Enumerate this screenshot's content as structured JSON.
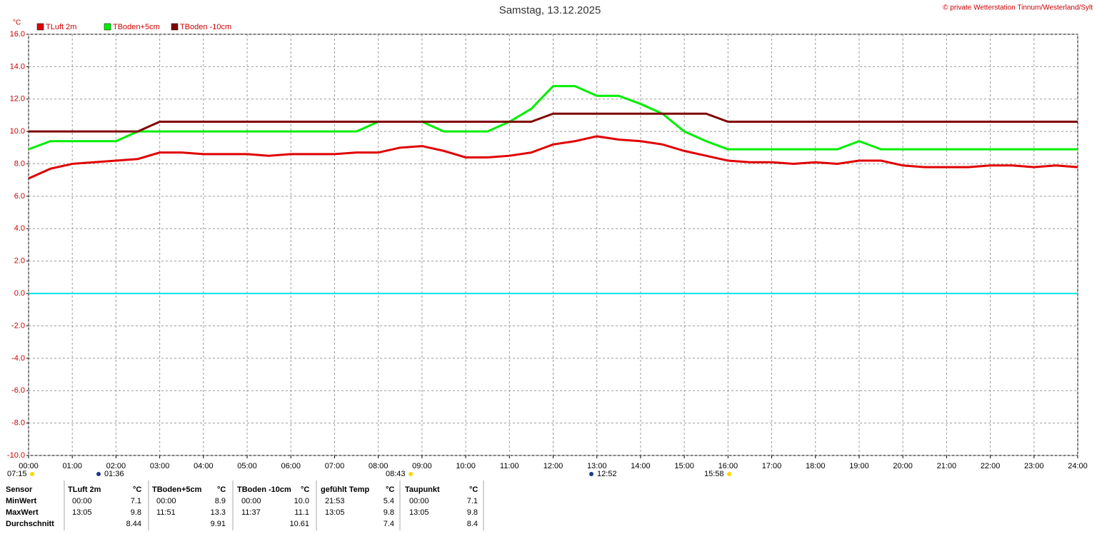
{
  "chart_data": {
    "type": "line",
    "title": "Samstag, 13.12.2025",
    "copyright": "© private Wetterstation Tinnum/Westerland/Sylt",
    "y_unit": "°C",
    "x": [
      0,
      0.5,
      1,
      1.5,
      2,
      2.5,
      3,
      3.5,
      4,
      4.5,
      5,
      5.5,
      6,
      6.5,
      7,
      7.5,
      8,
      8.5,
      9,
      9.5,
      10,
      10.5,
      11,
      11.5,
      12,
      12.5,
      13,
      13.5,
      14,
      14.5,
      15,
      15.5,
      16,
      16.5,
      17,
      17.5,
      18,
      18.5,
      19,
      19.5,
      20,
      20.5,
      21,
      21.5,
      22,
      22.5,
      23,
      23.5,
      24
    ],
    "series": [
      {
        "name": "TLuft 2m",
        "color": "#e00000",
        "values": [
          7.1,
          7.7,
          8.0,
          8.1,
          8.2,
          8.3,
          8.7,
          8.7,
          8.6,
          8.6,
          8.6,
          8.5,
          8.6,
          8.6,
          8.6,
          8.7,
          8.7,
          9.0,
          9.1,
          8.8,
          8.4,
          8.4,
          8.5,
          8.7,
          9.2,
          9.4,
          9.7,
          9.5,
          9.4,
          9.2,
          8.8,
          8.5,
          8.2,
          8.1,
          8.1,
          8.0,
          8.1,
          8.0,
          8.2,
          8.2,
          7.9,
          7.8,
          7.8,
          7.8,
          7.9,
          7.9,
          7.8,
          7.9,
          7.8
        ]
      },
      {
        "name": "TBoden+5cm",
        "color": "#00ee00",
        "values": [
          8.9,
          9.4,
          9.4,
          9.4,
          9.4,
          10.0,
          10.0,
          10.0,
          10.0,
          10.0,
          10.0,
          10.0,
          10.0,
          10.0,
          10.0,
          10.0,
          10.6,
          10.6,
          10.6,
          10.0,
          10.0,
          10.0,
          10.6,
          11.4,
          12.8,
          12.8,
          12.2,
          12.2,
          11.7,
          11.1,
          10.0,
          9.4,
          8.9,
          8.9,
          8.9,
          8.9,
          8.9,
          8.9,
          9.4,
          8.9,
          8.9,
          8.9,
          8.9,
          8.9,
          8.9,
          8.9,
          8.9,
          8.9,
          8.9
        ]
      },
      {
        "name": "TBoden -10cm",
        "color": "#800000",
        "values": [
          10.0,
          10.0,
          10.0,
          10.0,
          10.0,
          10.0,
          10.6,
          10.6,
          10.6,
          10.6,
          10.6,
          10.6,
          10.6,
          10.6,
          10.6,
          10.6,
          10.6,
          10.6,
          10.6,
          10.6,
          10.6,
          10.6,
          10.6,
          10.6,
          11.1,
          11.1,
          11.1,
          11.1,
          11.1,
          11.1,
          11.1,
          11.1,
          10.6,
          10.6,
          10.6,
          10.6,
          10.6,
          10.6,
          10.6,
          10.6,
          10.6,
          10.6,
          10.6,
          10.6,
          10.6,
          10.6,
          10.6,
          10.6,
          10.6
        ]
      }
    ],
    "xlim": [
      0,
      24
    ],
    "xticks": [
      {
        "value": 0,
        "label": "00:00"
      },
      {
        "value": 1,
        "label": "01:00"
      },
      {
        "value": 2,
        "label": "02:00"
      },
      {
        "value": 3,
        "label": "03:00"
      },
      {
        "value": 4,
        "label": "04:00"
      },
      {
        "value": 5,
        "label": "05:00"
      },
      {
        "value": 6,
        "label": "06:00"
      },
      {
        "value": 7,
        "label": "07:00"
      },
      {
        "value": 8,
        "label": "08:00"
      },
      {
        "value": 9,
        "label": "09:00"
      },
      {
        "value": 10,
        "label": "10:00"
      },
      {
        "value": 11,
        "label": "11:00"
      },
      {
        "value": 12,
        "label": "12:00"
      },
      {
        "value": 13,
        "label": "13:00"
      },
      {
        "value": 14,
        "label": "14:00"
      },
      {
        "value": 15,
        "label": "15:00"
      },
      {
        "value": 16,
        "label": "16:00"
      },
      {
        "value": 17,
        "label": "17:00"
      },
      {
        "value": 18,
        "label": "18:00"
      },
      {
        "value": 19,
        "label": "19:00"
      },
      {
        "value": 20,
        "label": "20:00"
      },
      {
        "value": 21,
        "label": "21:00"
      },
      {
        "value": 22,
        "label": "22:00"
      },
      {
        "value": 23,
        "label": "23:00"
      },
      {
        "value": 24,
        "label": "24:00"
      }
    ],
    "ylim": [
      -10,
      16
    ],
    "yticks": [
      {
        "value": -10,
        "label": "-10.0"
      },
      {
        "value": -8,
        "label": "-8.0"
      },
      {
        "value": -6,
        "label": "-6.0"
      },
      {
        "value": -4,
        "label": "-4.0"
      },
      {
        "value": -2,
        "label": "-2.0"
      },
      {
        "value": 0,
        "label": "0.0"
      },
      {
        "value": 2,
        "label": "2.0"
      },
      {
        "value": 4,
        "label": "4.0"
      },
      {
        "value": 6,
        "label": "6.0"
      },
      {
        "value": 8,
        "label": "8.0"
      },
      {
        "value": 10,
        "label": "10.0"
      },
      {
        "value": 12,
        "label": "12.0"
      },
      {
        "value": 14,
        "label": "14.0"
      },
      {
        "value": 16,
        "label": "16.0"
      }
    ],
    "grid": true,
    "zero_line_color": "#00e0f0",
    "sun_annotations": [
      "07:15",
      "01:36",
      "08:43",
      "12:52",
      "15:58"
    ]
  },
  "summary_table": {
    "header": [
      "Sensor",
      "TLuft 2m",
      "°C",
      "TBoden+5cm",
      "°C",
      "TBoden -10cm",
      "°C",
      "gefühlt Temp",
      "°C",
      "Taupunkt",
      "°C"
    ],
    "rows": [
      [
        "MinWert",
        "00:00",
        "7.1",
        "00:00",
        "8.9",
        "00:00",
        "10.0",
        "21:53",
        "5.4",
        "00:00",
        "7.1"
      ],
      [
        "MaxWert",
        "13:05",
        "9.8",
        "11:51",
        "13.3",
        "11:37",
        "11.1",
        "13:05",
        "9.8",
        "13:05",
        "9.8"
      ],
      [
        "Durchschnitt",
        null,
        "8.44",
        null,
        "9.91",
        null,
        "10.61",
        null,
        "7.4",
        null,
        "8.4"
      ]
    ]
  }
}
